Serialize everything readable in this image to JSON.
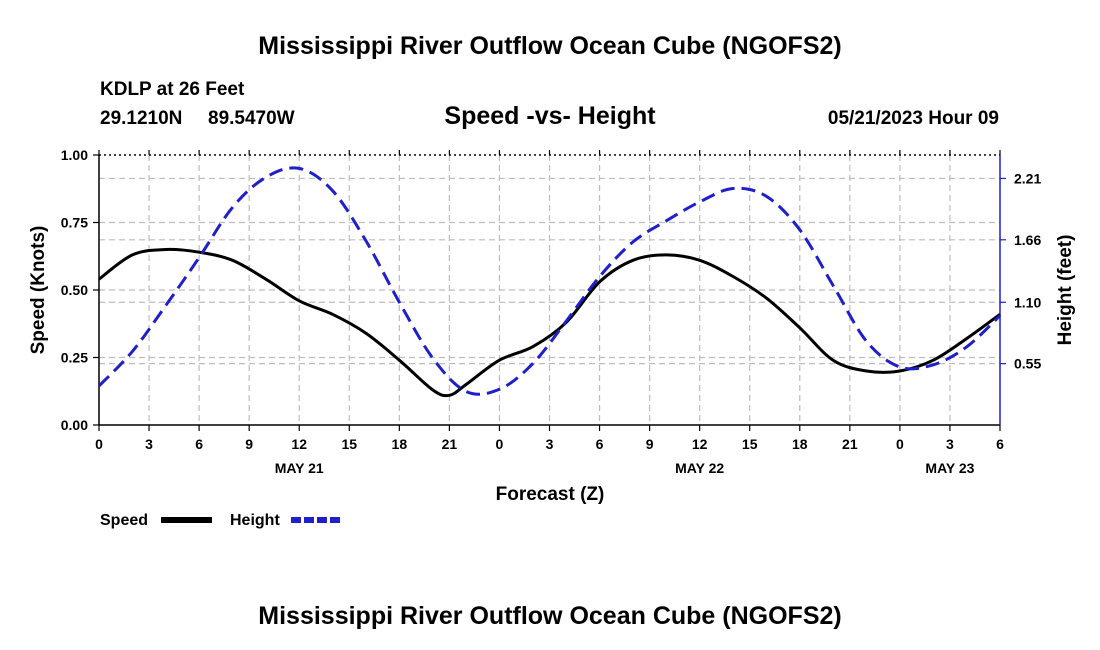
{
  "title": "Mississippi River Outflow Ocean Cube (NGOFS2)",
  "footer_title": "Mississippi River Outflow Ocean Cube (NGOFS2)",
  "station": {
    "name": "KDLP at 26 Feet",
    "lat": "29.1210N",
    "lon": "89.5470W",
    "datetime": "05/21/2023 Hour 09"
  },
  "chart_data": {
    "type": "line",
    "title": "Speed -vs- Height",
    "xlabel": "Forecast (Z)",
    "ylabel": "Speed (Knots)",
    "y2label": "Height (feet)",
    "x_hours": [
      0,
      3,
      6,
      9,
      12,
      15,
      18,
      21,
      24,
      27,
      30,
      33,
      36,
      39,
      42,
      45,
      48,
      51,
      54
    ],
    "xtick_labels": [
      "0",
      "3",
      "6",
      "9",
      "12",
      "15",
      "18",
      "21",
      "0",
      "3",
      "6",
      "9",
      "12",
      "15",
      "18",
      "21",
      "0",
      "3",
      "6"
    ],
    "date_labels": [
      {
        "label": "MAY 21",
        "hour": 12
      },
      {
        "label": "MAY 22",
        "hour": 36
      },
      {
        "label": "MAY 23",
        "hour": 51
      }
    ],
    "ylim": [
      0,
      1.0
    ],
    "yticks": [
      0,
      0.25,
      0.5,
      0.75,
      1.0
    ],
    "ytick_labels": [
      "0.00",
      "0.25",
      "0.50",
      "0.75",
      "1.00"
    ],
    "y2lim": [
      0,
      2.42
    ],
    "y2ticks": [
      0.55,
      1.1,
      1.66,
      2.21
    ],
    "y2tick_labels": [
      "0.55",
      "1.10",
      "1.66",
      "2.21"
    ],
    "series": [
      {
        "name": "Speed",
        "axis": "left",
        "color": "#000000",
        "dash": false,
        "x": [
          0,
          2,
          4,
          6,
          8,
          10,
          12,
          14,
          16,
          18,
          20,
          21,
          22,
          24,
          26,
          28,
          30,
          32,
          34,
          36,
          38,
          40,
          42,
          44,
          46,
          48,
          50,
          52,
          54
        ],
        "values": [
          0.54,
          0.63,
          0.65,
          0.64,
          0.61,
          0.54,
          0.46,
          0.41,
          0.34,
          0.24,
          0.13,
          0.11,
          0.15,
          0.24,
          0.29,
          0.38,
          0.53,
          0.61,
          0.63,
          0.61,
          0.55,
          0.47,
          0.36,
          0.24,
          0.2,
          0.2,
          0.24,
          0.32,
          0.41
        ]
      },
      {
        "name": "Height",
        "axis": "right",
        "color": "#1f1fcc",
        "dash": true,
        "x": [
          0,
          2,
          4,
          6,
          8,
          10,
          12,
          14,
          16,
          18,
          20,
          22,
          24,
          26,
          28,
          30,
          32,
          34,
          36,
          38,
          40,
          42,
          44,
          46,
          48,
          50,
          52,
          54
        ],
        "values": [
          0.35,
          0.66,
          1.07,
          1.5,
          1.95,
          2.22,
          2.3,
          2.1,
          1.65,
          1.1,
          0.6,
          0.3,
          0.32,
          0.55,
          0.93,
          1.33,
          1.64,
          1.83,
          2.0,
          2.12,
          2.05,
          1.75,
          1.25,
          0.75,
          0.52,
          0.54,
          0.7,
          0.98
        ]
      }
    ],
    "legend": [
      "Speed",
      "Height"
    ],
    "grid": true
  }
}
